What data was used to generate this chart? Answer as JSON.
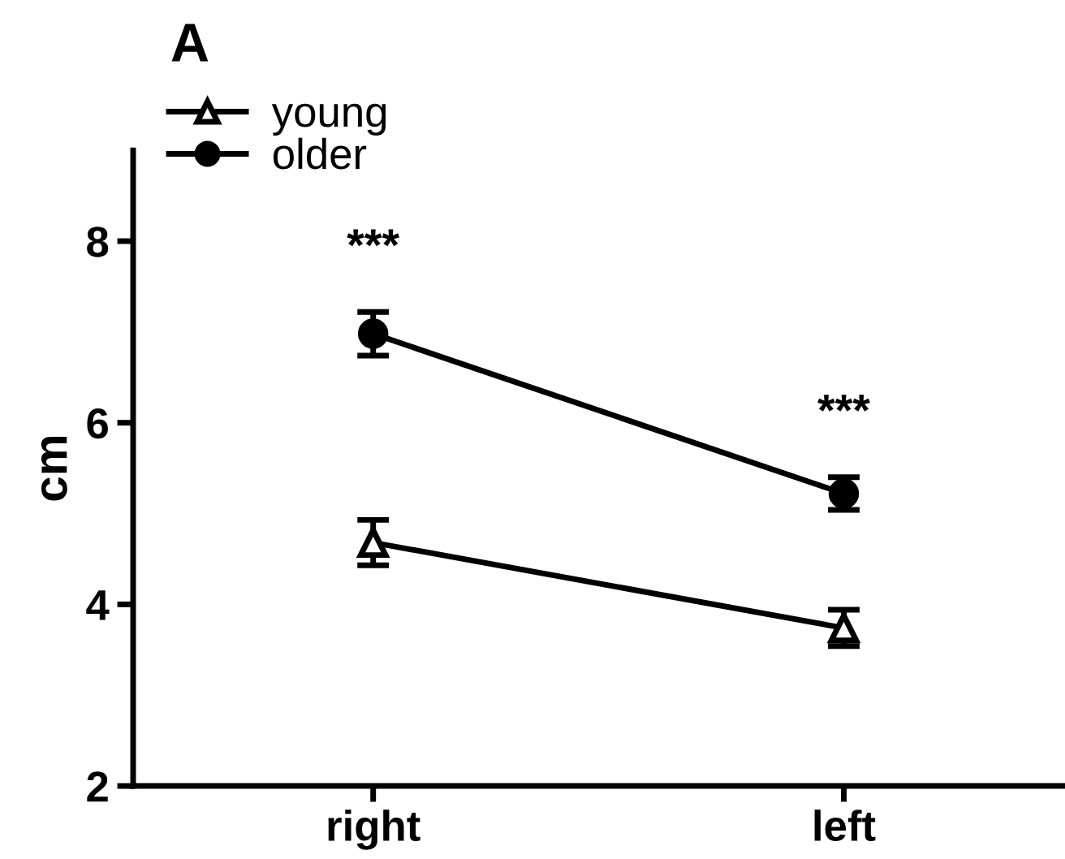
{
  "chart_data": {
    "type": "line",
    "title": "A",
    "ylabel": "cm",
    "categories": [
      "right",
      "left"
    ],
    "series": [
      {
        "name": "young",
        "color": "#000000",
        "marker": "triangle",
        "values": [
          4.68,
          3.74
        ],
        "errors": [
          0.25,
          0.2
        ]
      },
      {
        "name": "older",
        "color": "#000000",
        "marker": "circle",
        "values": [
          6.98,
          5.22
        ],
        "errors": [
          0.24,
          0.18
        ]
      }
    ],
    "annotations": [
      "***",
      "***"
    ],
    "ylim": [
      2,
      9
    ],
    "yticks": [
      2,
      4,
      6,
      8
    ],
    "grid": false,
    "legend": "top left"
  }
}
